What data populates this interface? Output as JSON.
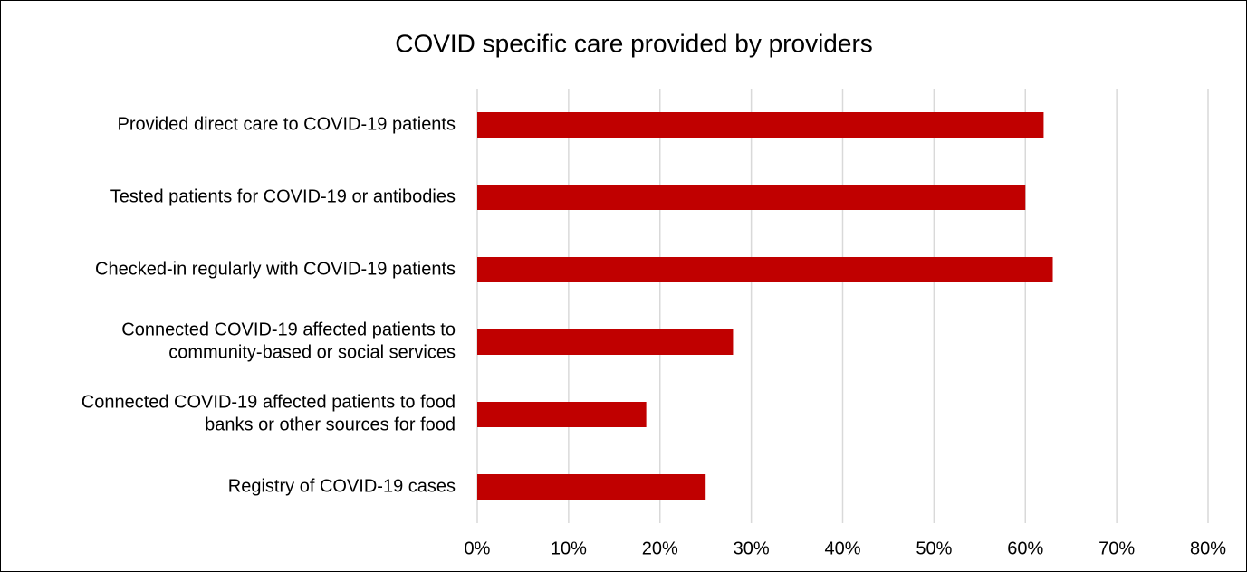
{
  "chart_data": {
    "type": "bar",
    "orientation": "horizontal",
    "title": "COVID specific care provided by providers",
    "categories": [
      "Provided direct care to COVID-19 patients",
      "Tested patients for COVID-19 or antibodies",
      "Checked-in regularly with COVID-19 patients",
      "Connected COVID-19 affected patients to community-based or social services",
      "Connected COVID-19 affected patients to food banks or other sources for food",
      "Registry of COVID-19 cases"
    ],
    "values": [
      62,
      60,
      63,
      28,
      18.5,
      25
    ],
    "color": "#c00000",
    "xlim": [
      0,
      80
    ],
    "xticks": [
      {
        "value": 0,
        "label": "0%"
      },
      {
        "value": 10,
        "label": "10%"
      },
      {
        "value": 20,
        "label": "20%"
      },
      {
        "value": 30,
        "label": "30%"
      },
      {
        "value": 40,
        "label": "40%"
      },
      {
        "value": 50,
        "label": "50%"
      },
      {
        "value": 60,
        "label": "60%"
      },
      {
        "value": 70,
        "label": "70%"
      },
      {
        "value": 80,
        "label": "80%"
      }
    ],
    "grid": true
  }
}
